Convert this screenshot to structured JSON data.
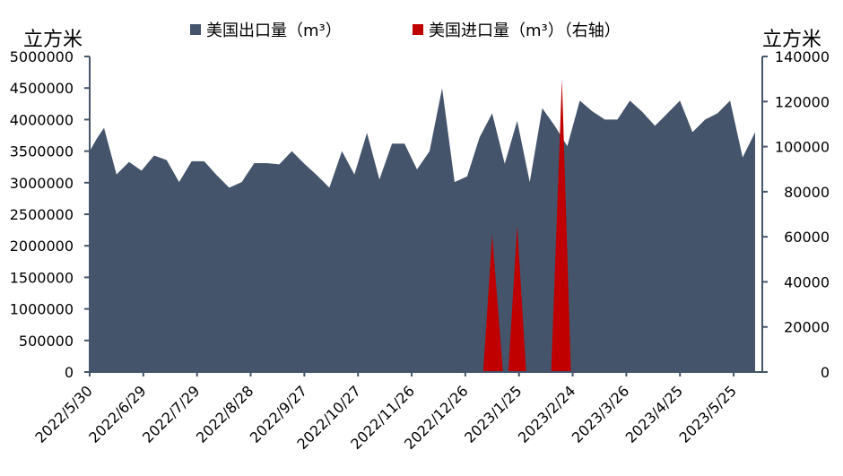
{
  "chart_data": {
    "type": "area",
    "left_unit": "立方米",
    "right_unit": "立方米",
    "legend_placement": "top",
    "grid": false,
    "y_left": {
      "min": 0,
      "max": 5000000,
      "ticks": [
        "0",
        "500000",
        "1000000",
        "1500000",
        "2000000",
        "2500000",
        "3000000",
        "3500000",
        "4000000",
        "4500000",
        "5000000"
      ]
    },
    "y_right": {
      "min": 0,
      "max": 140000,
      "ticks": [
        "0",
        "20000",
        "40000",
        "60000",
        "80000",
        "100000",
        "120000",
        "140000"
      ]
    },
    "x_tick_labels": [
      "2022/5/30",
      "2022/6/29",
      "2022/7/29",
      "2022/8/28",
      "2022/9/27",
      "2022/10/27",
      "2022/11/26",
      "2022/12/26",
      "2023/1/25",
      "2023/2/24",
      "2023/3/26",
      "2023/4/25",
      "2023/5/25"
    ],
    "x_range": [
      "2022/5/30",
      "2023/6/10"
    ],
    "series": [
      {
        "name": "美国出口量（m³）",
        "axis": "left",
        "color": "#44546a",
        "points": [
          [
            "2022/5/30",
            3500000
          ],
          [
            "2022/6/3",
            3700000
          ],
          [
            "2022/6/7",
            3870000
          ],
          [
            "2022/6/14",
            3130000
          ],
          [
            "2022/6/21",
            3330000
          ],
          [
            "2022/6/28",
            3190000
          ],
          [
            "2022/7/5",
            3430000
          ],
          [
            "2022/7/12",
            3360000
          ],
          [
            "2022/7/19",
            3010000
          ],
          [
            "2022/7/26",
            3340000
          ],
          [
            "2022/8/2",
            3340000
          ],
          [
            "2022/8/9",
            3120000
          ],
          [
            "2022/8/16",
            2920000
          ],
          [
            "2022/8/23",
            3010000
          ],
          [
            "2022/8/30",
            3310000
          ],
          [
            "2022/9/6",
            3310000
          ],
          [
            "2022/9/13",
            3290000
          ],
          [
            "2022/9/20",
            3500000
          ],
          [
            "2022/9/27",
            3300000
          ],
          [
            "2022/10/4",
            3120000
          ],
          [
            "2022/10/11",
            2920000
          ],
          [
            "2022/10/18",
            3500000
          ],
          [
            "2022/10/25",
            3130000
          ],
          [
            "2022/11/1",
            3790000
          ],
          [
            "2022/11/8",
            3050000
          ],
          [
            "2022/11/15",
            3620000
          ],
          [
            "2022/11/22",
            3620000
          ],
          [
            "2022/11/29",
            3210000
          ],
          [
            "2022/12/6",
            3500000
          ],
          [
            "2022/12/13",
            4500000
          ],
          [
            "2022/12/20",
            3010000
          ],
          [
            "2022/12/27",
            3100000
          ],
          [
            "2023/1/3",
            3720000
          ],
          [
            "2023/1/10",
            4100000
          ],
          [
            "2023/1/17",
            3300000
          ],
          [
            "2023/1/24",
            3980000
          ],
          [
            "2023/1/31",
            3010000
          ],
          [
            "2023/2/7",
            4180000
          ],
          [
            "2023/2/14",
            3900000
          ],
          [
            "2023/2/21",
            3580000
          ],
          [
            "2023/2/28",
            4300000
          ],
          [
            "2023/3/7",
            4130000
          ],
          [
            "2023/3/14",
            4000000
          ],
          [
            "2023/3/21",
            4000000
          ],
          [
            "2023/3/28",
            4300000
          ],
          [
            "2023/4/4",
            4120000
          ],
          [
            "2023/4/11",
            3900000
          ],
          [
            "2023/4/18",
            4100000
          ],
          [
            "2023/4/25",
            4300000
          ],
          [
            "2023/5/2",
            3800000
          ],
          [
            "2023/5/9",
            4000000
          ],
          [
            "2023/5/16",
            4100000
          ],
          [
            "2023/5/23",
            4300000
          ],
          [
            "2023/5/30",
            3400000
          ],
          [
            "2023/6/6",
            3800000
          ]
        ]
      },
      {
        "name": "美国进口量（m³）（右轴）",
        "axis": "right",
        "color": "#c00000",
        "points": [
          [
            "2023/1/5",
            0
          ],
          [
            "2023/1/10",
            61000
          ],
          [
            "2023/1/16",
            0
          ],
          [
            "2023/1/19",
            0
          ],
          [
            "2023/1/24",
            65000
          ],
          [
            "2023/1/29",
            0
          ],
          [
            "2023/2/12",
            0
          ],
          [
            "2023/2/18",
            130000
          ],
          [
            "2023/2/23",
            0
          ]
        ]
      }
    ]
  }
}
